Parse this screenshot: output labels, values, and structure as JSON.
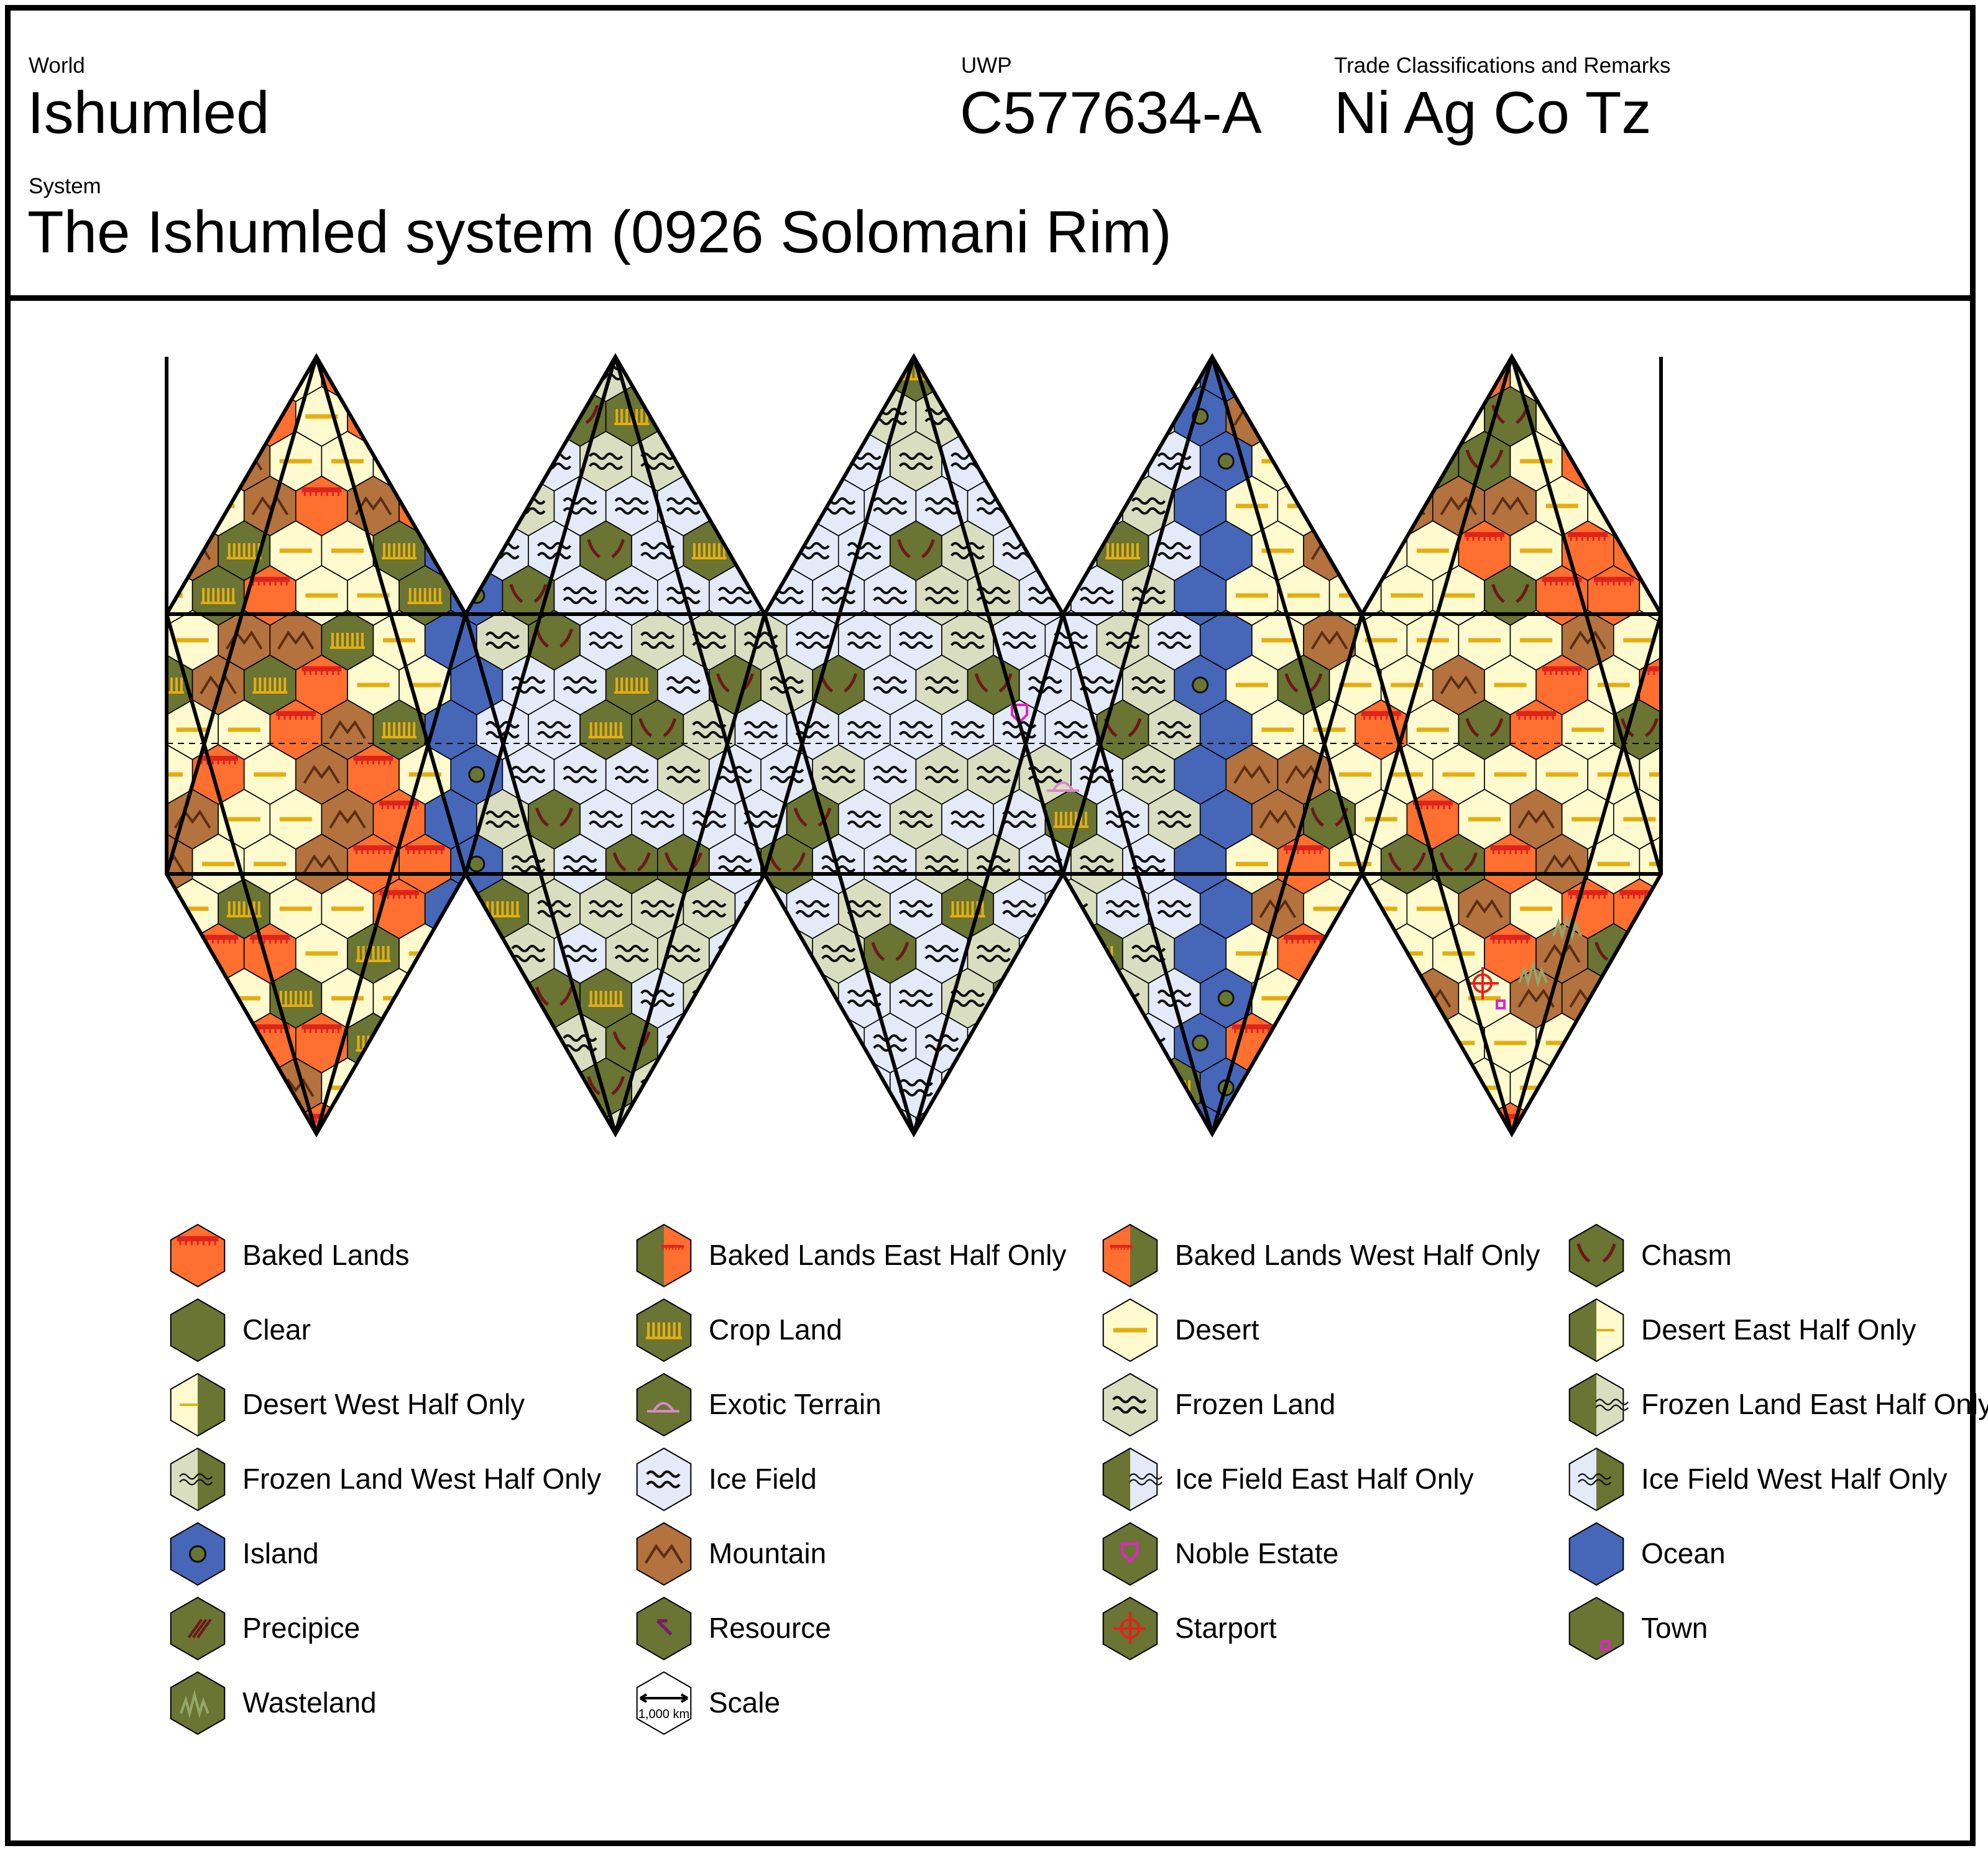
{
  "header": {
    "world_label": "World",
    "world": "Ishumled",
    "uwp_label": "UWP",
    "uwp": "C577634-A",
    "trade_label": "Trade Classifications and Remarks",
    "trade": "Ni Ag Co Tz",
    "system_label": "System",
    "system": "The Ishumled system (0926 Solomani Rim)"
  },
  "colors": {
    "baked": "#FF6F2F",
    "baked_line": "#E0241C",
    "clear": "#6A7433",
    "desert": "#FFFBCF",
    "desert_line": "#E3AE12",
    "frozen": "#DADEC0",
    "ice": "#E4EAF8",
    "mountain": "#B3723E",
    "ocean": "#4666B8",
    "chasm": "#6B1A1A",
    "resource": "#7A1A6E",
    "noble": "#E024C8",
    "starport": "#E0241C",
    "exotic": "#D88AC8",
    "wasteland": "#93A86A"
  },
  "legend": [
    {
      "label": "Baked Lands",
      "icon": "baked-lands-icon"
    },
    {
      "label": "Baked Lands East Half Only",
      "icon": "baked-lands-east-half-icon"
    },
    {
      "label": "Baked Lands West Half Only",
      "icon": "baked-lands-west-half-icon"
    },
    {
      "label": "Chasm",
      "icon": "chasm-icon"
    },
    {
      "label": "Clear",
      "icon": "clear-icon"
    },
    {
      "label": "Crop Land",
      "icon": "crop-land-icon"
    },
    {
      "label": "Desert",
      "icon": "desert-icon"
    },
    {
      "label": "Desert East Half Only",
      "icon": "desert-east-half-icon"
    },
    {
      "label": "Desert West Half Only",
      "icon": "desert-west-half-icon"
    },
    {
      "label": "Exotic Terrain",
      "icon": "exotic-terrain-icon"
    },
    {
      "label": "Frozen Land",
      "icon": "frozen-land-icon"
    },
    {
      "label": "Frozen Land East Half Only",
      "icon": "frozen-land-east-half-icon"
    },
    {
      "label": "Frozen Land West Half Only",
      "icon": "frozen-land-west-half-icon"
    },
    {
      "label": "Ice Field",
      "icon": "ice-field-icon"
    },
    {
      "label": "Ice Field East Half Only",
      "icon": "ice-field-east-half-icon"
    },
    {
      "label": "Ice Field West Half Only",
      "icon": "ice-field-west-half-icon"
    },
    {
      "label": "Island",
      "icon": "island-icon"
    },
    {
      "label": "Mountain",
      "icon": "mountain-icon"
    },
    {
      "label": "Noble Estate",
      "icon": "noble-estate-icon"
    },
    {
      "label": "Ocean",
      "icon": "ocean-icon"
    },
    {
      "label": "Precipice",
      "icon": "precipice-icon"
    },
    {
      "label": "Resource",
      "icon": "resource-icon"
    },
    {
      "label": "Starport",
      "icon": "starport-icon"
    },
    {
      "label": "Town",
      "icon": "town-icon"
    },
    {
      "label": "Wasteland",
      "icon": "wasteland-icon"
    },
    {
      "label": "Scale",
      "icon": "scale-icon"
    }
  ],
  "scale_text": "1,000 km"
}
